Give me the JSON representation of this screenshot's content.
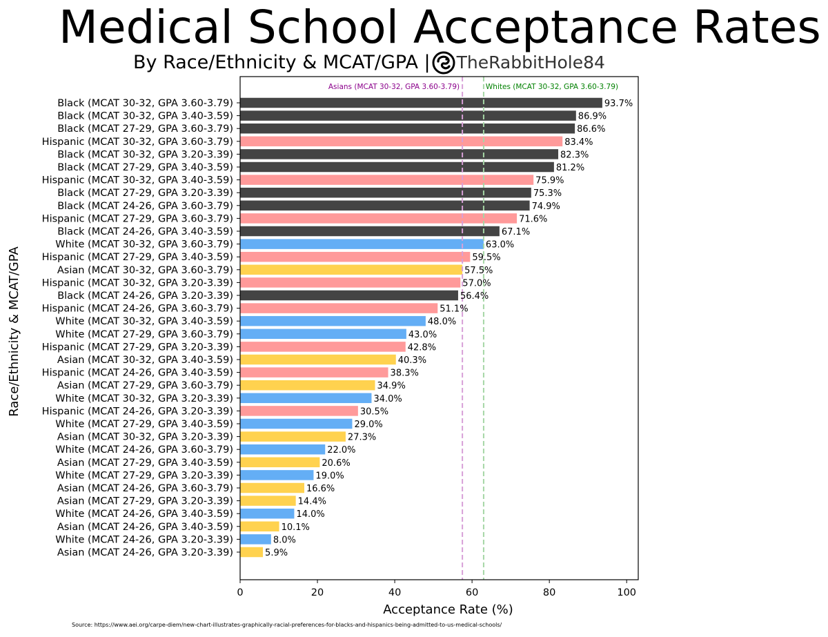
{
  "header": {
    "title": "Medical School Acceptance Rates",
    "subtitle": "By Race/Ethnicity & MCAT/GPA |",
    "brand": "TheRabbitHole84"
  },
  "source": "Source: https://www.aei.org/carpe-diem/new-chart-illustrates-graphically-racial-preferences-for-blacks-and-hispanics-being-admitted-to-us-medical-schools/",
  "colors": {
    "Black": "#444444",
    "Hispanic": "#ff9a9a",
    "White": "#64aef5",
    "Asian": "#ffd24f",
    "asian_ref_line": "#d8a0d8",
    "white_ref_line": "#a6d6a6",
    "asian_ref_text": "#8b008b",
    "white_ref_text": "#008000"
  },
  "chart_data": {
    "type": "bar",
    "orientation": "horizontal",
    "xlabel": "Acceptance Rate (%)",
    "ylabel": "Race/Ethnicity & MCAT/GPA",
    "xlim": [
      0,
      103
    ],
    "xticks": [
      0,
      20,
      40,
      60,
      80,
      100
    ],
    "grid": false,
    "categories": [
      "Black (MCAT 30-32, GPA 3.60-3.79)",
      "Black (MCAT 30-32, GPA 3.40-3.59)",
      "Black (MCAT 27-29, GPA 3.60-3.79)",
      "Hispanic (MCAT 30-32, GPA 3.60-3.79)",
      "Black (MCAT 30-32, GPA 3.20-3.39)",
      "Black (MCAT 27-29, GPA 3.40-3.59)",
      "Hispanic (MCAT 30-32, GPA 3.40-3.59)",
      "Black (MCAT 27-29, GPA 3.20-3.39)",
      "Black (MCAT 24-26, GPA 3.60-3.79)",
      "Hispanic (MCAT 27-29, GPA 3.60-3.79)",
      "Black (MCAT 24-26, GPA 3.40-3.59)",
      "White (MCAT 30-32, GPA 3.60-3.79)",
      "Hispanic (MCAT 27-29, GPA 3.40-3.59)",
      "Asian (MCAT 30-32, GPA 3.60-3.79)",
      "Hispanic (MCAT 30-32, GPA 3.20-3.39)",
      "Black (MCAT 24-26, GPA 3.20-3.39)",
      "Hispanic (MCAT 24-26, GPA 3.60-3.79)",
      "White (MCAT 30-32, GPA 3.40-3.59)",
      "White (MCAT 27-29, GPA 3.60-3.79)",
      "Hispanic (MCAT 27-29, GPA 3.20-3.39)",
      "Asian (MCAT 30-32, GPA 3.40-3.59)",
      "Hispanic (MCAT 24-26, GPA 3.40-3.59)",
      "Asian (MCAT 27-29, GPA 3.60-3.79)",
      "White (MCAT 30-32, GPA 3.20-3.39)",
      "Hispanic (MCAT 24-26, GPA 3.20-3.39)",
      "White (MCAT 27-29, GPA 3.40-3.59)",
      "Asian (MCAT 30-32, GPA 3.20-3.39)",
      "White (MCAT 24-26, GPA 3.60-3.79)",
      "Asian (MCAT 27-29, GPA 3.40-3.59)",
      "White (MCAT 27-29, GPA 3.20-3.39)",
      "Asian (MCAT 24-26, GPA 3.60-3.79)",
      "Asian (MCAT 27-29, GPA 3.20-3.39)",
      "White (MCAT 24-26, GPA 3.40-3.59)",
      "Asian (MCAT 24-26, GPA 3.40-3.59)",
      "White (MCAT 24-26, GPA 3.20-3.39)",
      "Asian (MCAT 24-26, GPA 3.20-3.39)"
    ],
    "groups": [
      "Black",
      "Black",
      "Black",
      "Hispanic",
      "Black",
      "Black",
      "Hispanic",
      "Black",
      "Black",
      "Hispanic",
      "Black",
      "White",
      "Hispanic",
      "Asian",
      "Hispanic",
      "Black",
      "Hispanic",
      "White",
      "White",
      "Hispanic",
      "Asian",
      "Hispanic",
      "Asian",
      "White",
      "Hispanic",
      "White",
      "Asian",
      "White",
      "Asian",
      "White",
      "Asian",
      "Asian",
      "White",
      "Asian",
      "White",
      "Asian"
    ],
    "values": [
      93.7,
      86.9,
      86.6,
      83.4,
      82.3,
      81.2,
      75.9,
      75.3,
      74.9,
      71.6,
      67.1,
      63.0,
      59.5,
      57.5,
      57.0,
      56.4,
      51.1,
      48.0,
      43.0,
      42.8,
      40.3,
      38.3,
      34.9,
      34.0,
      30.5,
      29.0,
      27.3,
      22.0,
      20.6,
      19.0,
      16.6,
      14.4,
      14.0,
      10.1,
      8.0,
      5.9
    ],
    "value_labels": [
      "93.7%",
      "86.9%",
      "86.6%",
      "83.4%",
      "82.3%",
      "81.2%",
      "75.9%",
      "75.3%",
      "74.9%",
      "71.6%",
      "67.1%",
      "63.0%",
      "59.5%",
      "57.5%",
      "57.0%",
      "56.4%",
      "51.1%",
      "48.0%",
      "43.0%",
      "42.8%",
      "40.3%",
      "38.3%",
      "34.9%",
      "34.0%",
      "30.5%",
      "29.0%",
      "27.3%",
      "22.0%",
      "20.6%",
      "19.0%",
      "16.6%",
      "14.4%",
      "14.0%",
      "10.1%",
      "8.0%",
      "5.9%"
    ],
    "reference_lines": [
      {
        "label": "Asians (MCAT 30-32, GPA 3.60-3.79)",
        "value": 57.5,
        "color_key": "asian_ref_line",
        "text_color_key": "asian_ref_text",
        "label_side": "left"
      },
      {
        "label": "Whites (MCAT 30-32, GPA 3.60-3.79)",
        "value": 63.0,
        "color_key": "white_ref_line",
        "text_color_key": "white_ref_text",
        "label_side": "right"
      }
    ]
  }
}
